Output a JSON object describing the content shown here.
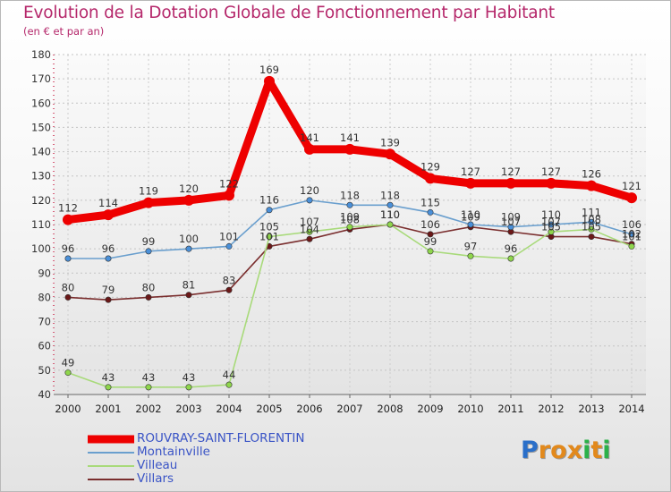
{
  "title": "Evolution de la Dotation Globale de Fonctionnement par Habitant",
  "subtitle": "(en € et par an)",
  "logo": {
    "letters": [
      "P",
      "r",
      "o",
      "x",
      "i",
      "t",
      "i"
    ],
    "colors": [
      "#2a6fc9",
      "#e2891c",
      "#e2891c",
      "#ffffff",
      "#2bb14a",
      "#e2891c",
      "#2bb14a"
    ]
  },
  "chart_data": {
    "type": "line",
    "title": "Evolution de la Dotation Globale de Fonctionnement par Habitant",
    "ylabel": "(en € et par an)",
    "xlabel": "",
    "ylim": [
      40,
      180
    ],
    "yticks": [
      40,
      50,
      60,
      70,
      80,
      90,
      100,
      110,
      120,
      130,
      140,
      150,
      160,
      170,
      180
    ],
    "categories": [
      "2000",
      "2001",
      "2002",
      "2003",
      "2004",
      "2005",
      "2006",
      "2007",
      "2008",
      "2009",
      "2010",
      "2011",
      "2012",
      "2013",
      "2014"
    ],
    "grid": true,
    "series": [
      {
        "name": "ROUVRAY-SAINT-FLORENTIN",
        "color": "#ee0000",
        "marker_color": "#ee0000",
        "values": [
          112,
          114,
          119,
          120,
          122,
          169,
          141,
          141,
          139,
          129,
          127,
          127,
          127,
          126,
          121
        ]
      },
      {
        "name": "Montainville",
        "color": "#6a9fce",
        "marker_color": "#4a90d9",
        "values": [
          96,
          96,
          99,
          100,
          101,
          116,
          120,
          118,
          118,
          115,
          110,
          109,
          110,
          111,
          106
        ]
      },
      {
        "name": "Villeau",
        "color": "#a8da7a",
        "marker_color": "#8fd64c",
        "values": [
          49,
          43,
          43,
          43,
          44,
          105,
          107,
          109,
          110,
          99,
          97,
          96,
          107,
          108,
          101
        ]
      },
      {
        "name": "Villars",
        "color": "#7a2e2e",
        "marker_color": "#6b1818",
        "values": [
          80,
          79,
          80,
          81,
          83,
          101,
          104,
          108,
          110,
          106,
          109,
          107,
          105,
          105,
          102
        ]
      }
    ]
  }
}
